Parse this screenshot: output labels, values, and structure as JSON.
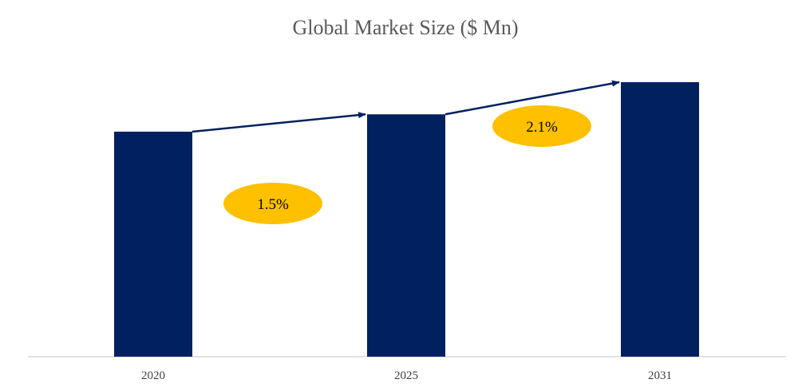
{
  "chart_data": {
    "type": "bar",
    "title": "Global Market Size ($ Mn)",
    "categories": [
      "2020",
      "2025",
      "2031"
    ],
    "values": [
      100,
      107.7,
      122.0
    ],
    "value_note_hidden": true,
    "xlabel": "",
    "ylabel": "",
    "ylim": [
      0,
      130
    ],
    "grid": false,
    "legend": "none",
    "growth_annotations": [
      {
        "from": "2020",
        "to": "2025",
        "label": "1.5%"
      },
      {
        "from": "2025",
        "to": "2031",
        "label": "2.1%"
      }
    ],
    "colors": {
      "bar": "#002060",
      "arrow": "#002060",
      "badge": "#FFC000",
      "axis": "#D9D9D9",
      "title": "#595959"
    }
  }
}
